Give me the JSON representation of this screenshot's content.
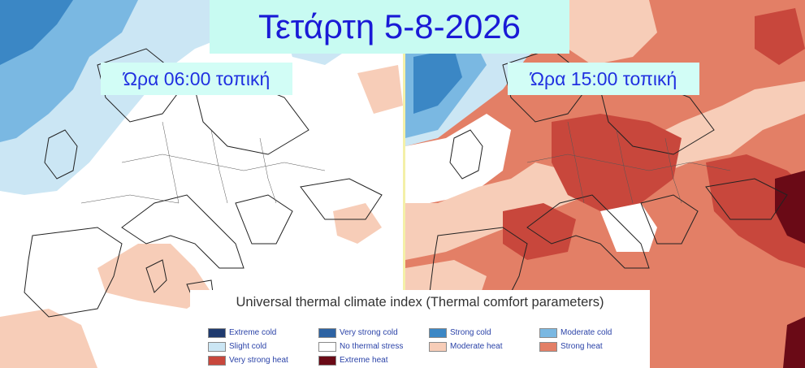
{
  "title": "Τετάρτη 5-8-2026",
  "panels": [
    {
      "time_label": "Ώρα 06:00 τοπική"
    },
    {
      "time_label": "Ώρα 15:00 τοπική"
    }
  ],
  "legend": {
    "title": "Universal thermal climate index (Thermal comfort parameters)",
    "categories": [
      {
        "label": "Extreme cold",
        "color": "#1f3a6e"
      },
      {
        "label": "Very strong cold",
        "color": "#2d63a3"
      },
      {
        "label": "Strong cold",
        "color": "#3b87c5"
      },
      {
        "label": "Moderate cold",
        "color": "#7ab8e2"
      },
      {
        "label": "Slight cold",
        "color": "#cbe6f4"
      },
      {
        "label": "No thermal stress",
        "color": "#ffffff"
      },
      {
        "label": "Moderate heat",
        "color": "#f7cdb8"
      },
      {
        "label": "Strong heat",
        "color": "#e37f66"
      },
      {
        "label": "Very strong heat",
        "color": "#c8473c"
      },
      {
        "label": "Extreme heat",
        "color": "#6a0a16"
      }
    ]
  }
}
